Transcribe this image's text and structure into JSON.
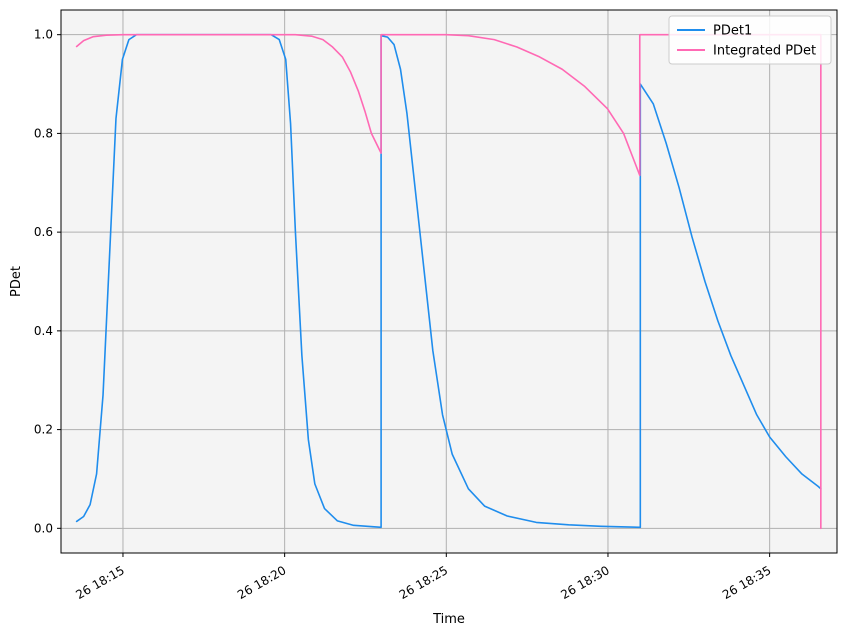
{
  "chart_data": {
    "type": "line",
    "title": "",
    "xlabel": "Time",
    "ylabel": "PDet",
    "x_ticks": [
      "26 18:15",
      "26 18:20",
      "26 18:25",
      "26 18:30",
      "26 18:35"
    ],
    "y_ticks": [
      "0.0",
      "0.2",
      "0.4",
      "0.6",
      "0.8",
      "1.0"
    ],
    "xlim": [
      "18:13:05",
      "18:37:05"
    ],
    "ylim": [
      -0.05,
      1.05
    ],
    "grid": true,
    "legend_position": "top-right",
    "background": "#f4f4f4",
    "series": [
      {
        "name": "PDet1",
        "color": "#1f8ded",
        "points": [
          [
            "18:13:34",
            0.014
          ],
          [
            "18:13:47",
            0.024
          ],
          [
            "18:13:59",
            0.048
          ],
          [
            "18:14:11",
            0.11
          ],
          [
            "18:14:23",
            0.27
          ],
          [
            "18:14:35",
            0.55
          ],
          [
            "18:14:47",
            0.83
          ],
          [
            "18:14:59",
            0.95
          ],
          [
            "18:15:11",
            0.99
          ],
          [
            "18:15:25",
            1.0
          ],
          [
            "18:19:35",
            1.0
          ],
          [
            "18:19:50",
            0.99
          ],
          [
            "18:20:02",
            0.95
          ],
          [
            "18:20:11",
            0.82
          ],
          [
            "18:20:20",
            0.6
          ],
          [
            "18:20:32",
            0.35
          ],
          [
            "18:20:44",
            0.18
          ],
          [
            "18:20:56",
            0.09
          ],
          [
            "18:21:14",
            0.04
          ],
          [
            "18:21:38",
            0.015
          ],
          [
            "18:22:08",
            0.006
          ],
          [
            "18:22:59",
            0.002
          ],
          [
            "18:22:59",
            0.998
          ],
          [
            "18:23:11",
            0.995
          ],
          [
            "18:23:23",
            0.98
          ],
          [
            "18:23:35",
            0.93
          ],
          [
            "18:23:47",
            0.84
          ],
          [
            "18:23:59",
            0.72
          ],
          [
            "18:24:11",
            0.6
          ],
          [
            "18:24:23",
            0.48
          ],
          [
            "18:24:35",
            0.36
          ],
          [
            "18:24:53",
            0.23
          ],
          [
            "18:25:11",
            0.15
          ],
          [
            "18:25:41",
            0.08
          ],
          [
            "18:26:11",
            0.045
          ],
          [
            "18:26:53",
            0.025
          ],
          [
            "18:27:47",
            0.012
          ],
          [
            "18:28:47",
            0.007
          ],
          [
            "18:29:47",
            0.004
          ],
          [
            "18:31:00",
            0.002
          ],
          [
            "18:31:00",
            0.9
          ],
          [
            "18:31:24",
            0.86
          ],
          [
            "18:31:48",
            0.78
          ],
          [
            "18:32:12",
            0.69
          ],
          [
            "18:32:36",
            0.59
          ],
          [
            "18:33:00",
            0.5
          ],
          [
            "18:33:24",
            0.42
          ],
          [
            "18:33:48",
            0.35
          ],
          [
            "18:34:12",
            0.29
          ],
          [
            "18:34:36",
            0.23
          ],
          [
            "18:35:00",
            0.185
          ],
          [
            "18:35:30",
            0.145
          ],
          [
            "18:36:00",
            0.11
          ],
          [
            "18:36:30",
            0.085
          ],
          [
            "18:36:35",
            0.08
          ]
        ]
      },
      {
        "name": "Integrated PDet",
        "color": "#ff69b4",
        "points": [
          [
            "18:13:34",
            0.976
          ],
          [
            "18:13:47",
            0.988
          ],
          [
            "18:14:05",
            0.996
          ],
          [
            "18:14:29",
            0.999
          ],
          [
            "18:15:00",
            1.0
          ],
          [
            "18:20:20",
            1.0
          ],
          [
            "18:20:50",
            0.997
          ],
          [
            "18:21:11",
            0.99
          ],
          [
            "18:21:29",
            0.975
          ],
          [
            "18:21:47",
            0.955
          ],
          [
            "18:22:02",
            0.925
          ],
          [
            "18:22:17",
            0.885
          ],
          [
            "18:22:29",
            0.845
          ],
          [
            "18:22:41",
            0.8
          ],
          [
            "18:22:59",
            0.76
          ],
          [
            "18:22:59",
            1.0
          ],
          [
            "18:25:00",
            1.0
          ],
          [
            "18:25:41",
            0.998
          ],
          [
            "18:26:29",
            0.99
          ],
          [
            "18:27:11",
            0.975
          ],
          [
            "18:27:53",
            0.955
          ],
          [
            "18:28:35",
            0.93
          ],
          [
            "18:29:17",
            0.895
          ],
          [
            "18:29:59",
            0.85
          ],
          [
            "18:30:29",
            0.8
          ],
          [
            "18:30:59",
            0.715
          ],
          [
            "18:30:59",
            1.0
          ],
          [
            "18:36:35",
            1.0
          ],
          [
            "18:36:35",
            0.0
          ]
        ]
      }
    ]
  }
}
